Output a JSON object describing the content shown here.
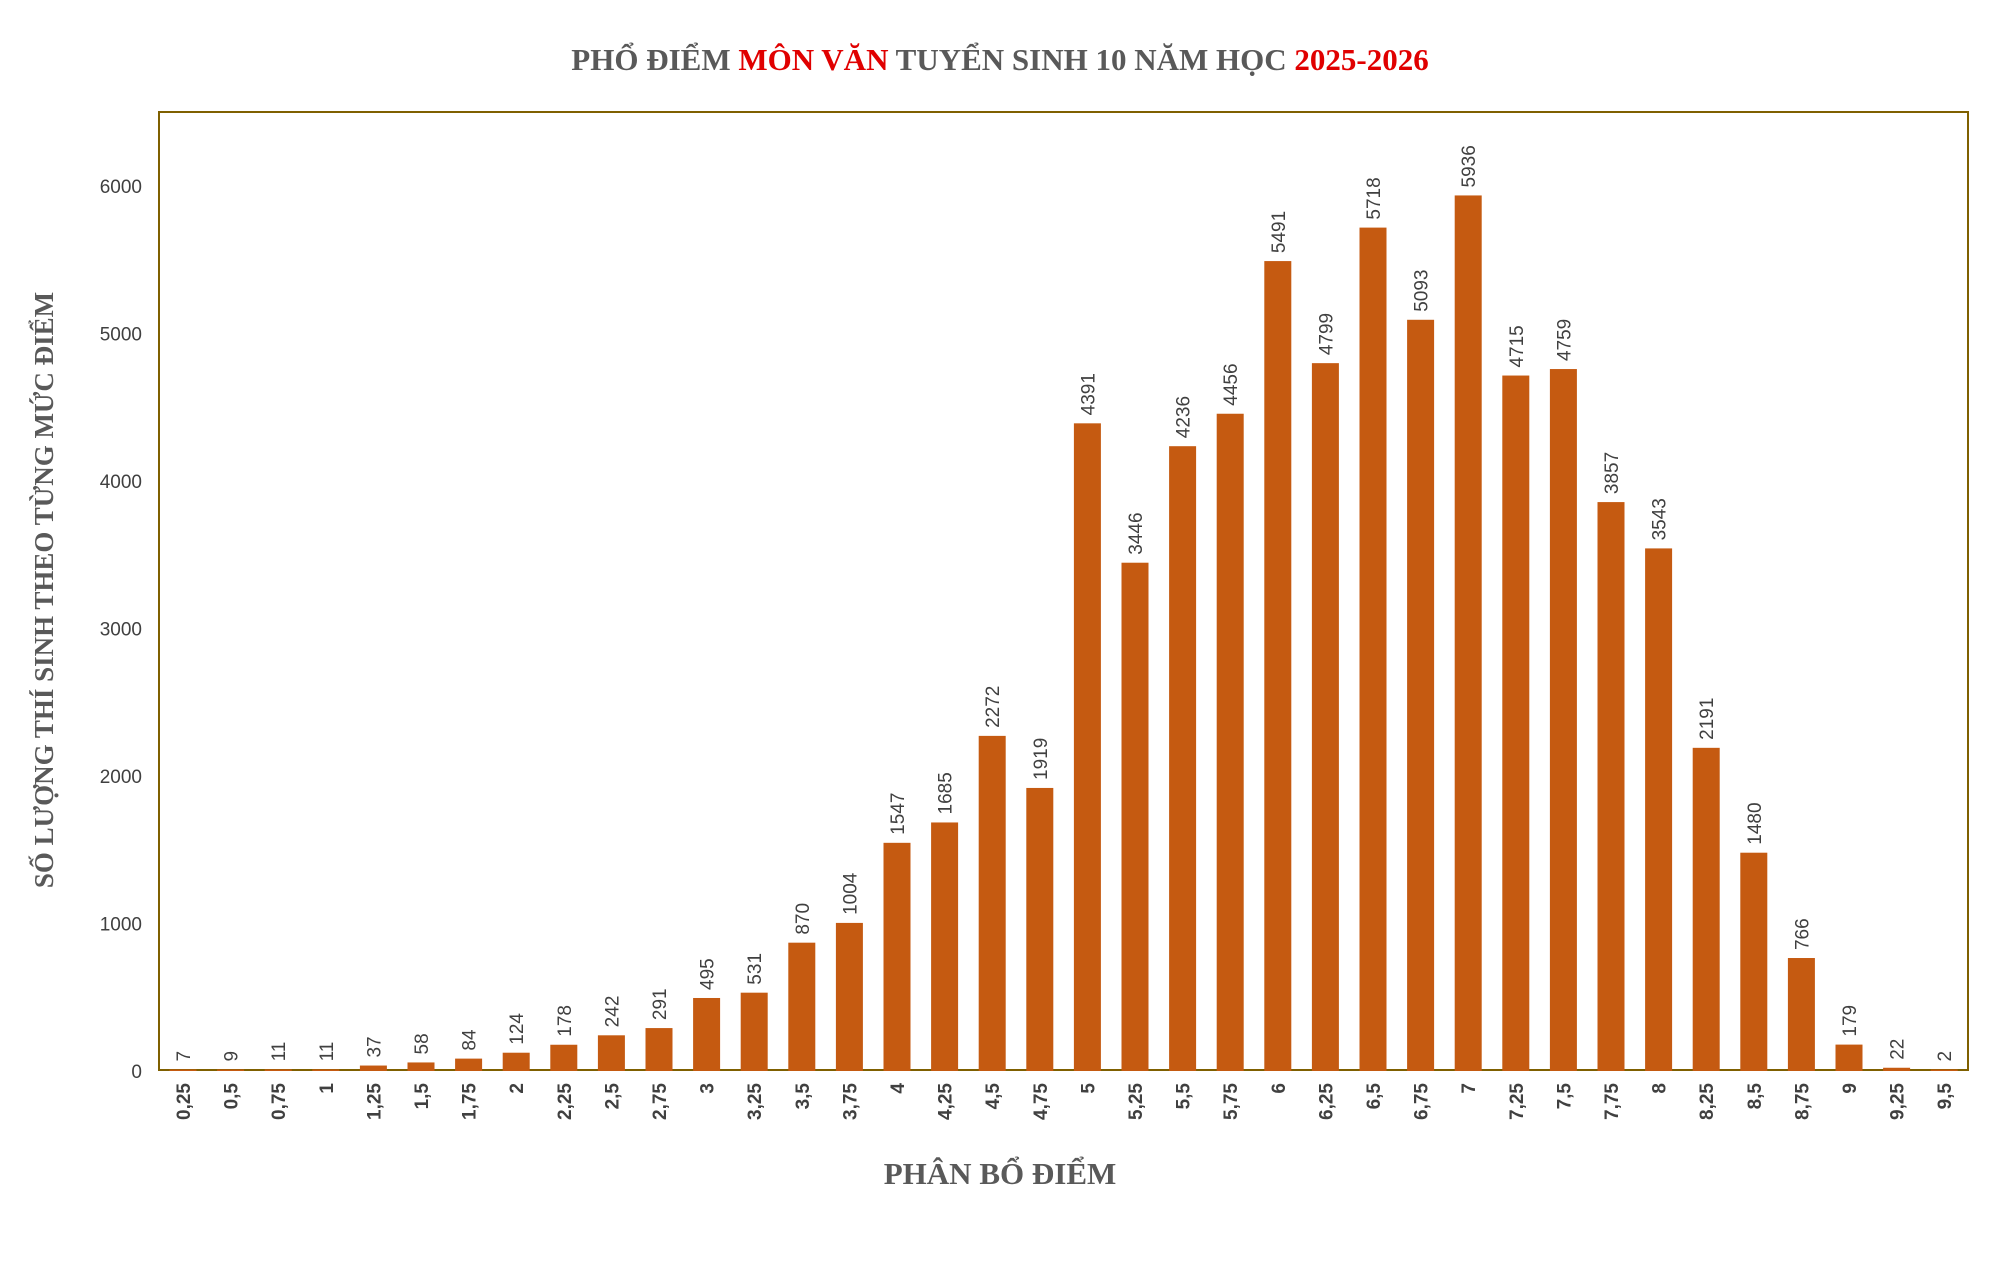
{
  "colors": {
    "bar": "#c55a11",
    "title": "#595959",
    "title_highlight": "#e00000",
    "plot_border": "#7f6000",
    "text": "#404040"
  },
  "chart_data": {
    "type": "bar",
    "title_parts": [
      {
        "text": "PHỔ ĐIỂM ",
        "highlight": false
      },
      {
        "text": "MÔN VĂN",
        "highlight": true
      },
      {
        "text": " TUYỂN SINH 10 NĂM HỌC ",
        "highlight": false
      },
      {
        "text": "2025-2026",
        "highlight": true
      }
    ],
    "xlabel": "PHÂN BỔ ĐIỂM",
    "ylabel": "SỐ LƯỢNG THÍ SINH THEO TỪNG MỨC ĐIỂM",
    "ylim": [
      0,
      6500
    ],
    "yticks": [
      0,
      1000,
      2000,
      3000,
      4000,
      5000,
      6000
    ],
    "grid": false,
    "categories": [
      "0,25",
      "0,5",
      "0,75",
      "1",
      "1,25",
      "1,5",
      "1,75",
      "2",
      "2,25",
      "2,5",
      "2,75",
      "3",
      "3,25",
      "3,5",
      "3,75",
      "4",
      "4,25",
      "4,5",
      "4,75",
      "5",
      "5,25",
      "5,5",
      "5,75",
      "6",
      "6,25",
      "6,5",
      "6,75",
      "7",
      "7,25",
      "7,5",
      "7,75",
      "8",
      "8,25",
      "8,5",
      "8,75",
      "9",
      "9,25",
      "9,5"
    ],
    "values": [
      7,
      9,
      11,
      11,
      37,
      58,
      84,
      124,
      178,
      242,
      291,
      495,
      531,
      870,
      1004,
      1547,
      1685,
      2272,
      1919,
      4391,
      3446,
      4236,
      4456,
      5491,
      4799,
      5718,
      5093,
      5936,
      4715,
      4759,
      3857,
      3543,
      2191,
      1480,
      766,
      179,
      22,
      2
    ]
  }
}
